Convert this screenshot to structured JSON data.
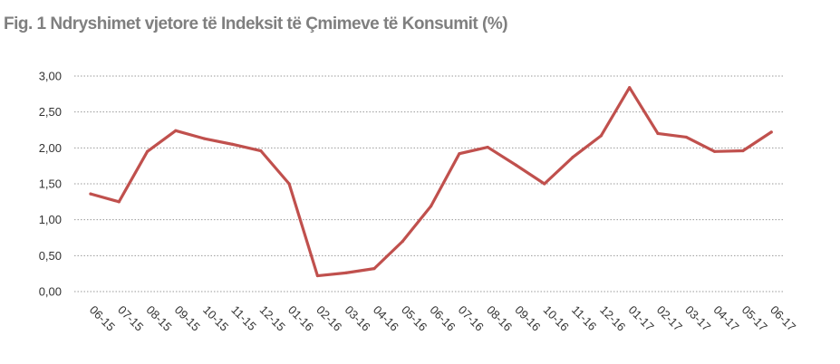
{
  "chart_data": {
    "type": "line",
    "title": "Fig. 1 Ndryshimet vjetore të Indeksit të Çmimeve të Konsumit (%)",
    "xlabel": "",
    "ylabel": "",
    "categories": [
      "06-15",
      "07-15",
      "08-15",
      "09-15",
      "10-15",
      "11-15",
      "12-15",
      "01-16",
      "02-16",
      "03-16",
      "04-16",
      "05-16",
      "06-16",
      "07-16",
      "08-16",
      "09-16",
      "10-16",
      "11-16",
      "12-16",
      "01-17",
      "02-17",
      "03-17",
      "04-17",
      "05-17",
      "06-17"
    ],
    "series": [
      {
        "values": [
          1.36,
          1.25,
          1.95,
          2.24,
          2.13,
          2.05,
          1.96,
          1.5,
          0.22,
          0.26,
          0.32,
          0.7,
          1.19,
          1.92,
          2.01,
          1.76,
          1.5,
          1.87,
          2.17,
          2.84,
          2.2,
          2.15,
          1.95,
          1.96,
          2.22
        ],
        "color": "#c0504d"
      }
    ],
    "yticks": [
      "0,00",
      "0,50",
      "1,00",
      "1,50",
      "2,00",
      "2,50",
      "3,00"
    ],
    "ylim": [
      0,
      3
    ],
    "grid": true,
    "legend": "none"
  }
}
